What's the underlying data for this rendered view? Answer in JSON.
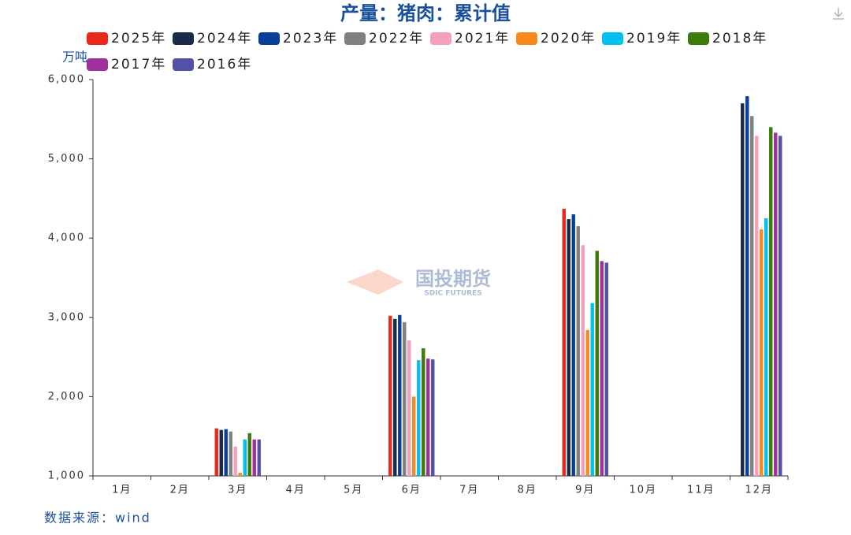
{
  "chart_data": {
    "type": "bar",
    "title": "产量：猪肉：累计值",
    "y_label": "万吨",
    "source": "数据来源：wind",
    "watermark": "国投期货",
    "watermark_sub": "SDIC FUTURES",
    "categories": [
      "1月",
      "2月",
      "3月",
      "4月",
      "5月",
      "6月",
      "7月",
      "8月",
      "9月",
      "10月",
      "11月",
      "12月"
    ],
    "ylim": [
      1000,
      6000
    ],
    "yticks": [
      {
        "value": 1000,
        "label": "1,000"
      },
      {
        "value": 2000,
        "label": "2,000"
      },
      {
        "value": 3000,
        "label": "3,000"
      },
      {
        "value": 4000,
        "label": "4,000"
      },
      {
        "value": 5000,
        "label": "5,000"
      },
      {
        "value": 6000,
        "label": "6,000"
      }
    ],
    "series": [
      {
        "name": "2025年",
        "color": "#e8291c",
        "values": [
          null,
          null,
          1600,
          null,
          null,
          3020,
          null,
          null,
          4370,
          null,
          null,
          null
        ]
      },
      {
        "name": "2024年",
        "color": "#1b2a4a",
        "values": [
          null,
          null,
          1580,
          null,
          null,
          2980,
          null,
          null,
          4240,
          null,
          null,
          5700
        ]
      },
      {
        "name": "2023年",
        "color": "#0a3f99",
        "values": [
          null,
          null,
          1590,
          null,
          null,
          3030,
          null,
          null,
          4300,
          null,
          null,
          5790
        ]
      },
      {
        "name": "2022年",
        "color": "#808080",
        "values": [
          null,
          null,
          1560,
          null,
          null,
          2940,
          null,
          null,
          4150,
          null,
          null,
          5540
        ]
      },
      {
        "name": "2021年",
        "color": "#f4a0b8",
        "values": [
          null,
          null,
          1370,
          null,
          null,
          2710,
          null,
          null,
          3910,
          null,
          null,
          5290
        ]
      },
      {
        "name": "2020年",
        "color": "#f7891e",
        "values": [
          null,
          null,
          1040,
          null,
          null,
          2000,
          null,
          null,
          2840,
          null,
          null,
          4110
        ]
      },
      {
        "name": "2019年",
        "color": "#00c0ef",
        "values": [
          null,
          null,
          1460,
          null,
          null,
          2460,
          null,
          null,
          3180,
          null,
          null,
          4250
        ]
      },
      {
        "name": "2018年",
        "color": "#3d7a0a",
        "values": [
          null,
          null,
          1540,
          null,
          null,
          2610,
          null,
          null,
          3840,
          null,
          null,
          5400
        ]
      },
      {
        "name": "2017年",
        "color": "#a0309d",
        "values": [
          null,
          null,
          1460,
          null,
          null,
          2480,
          null,
          null,
          3710,
          null,
          null,
          5330
        ]
      },
      {
        "name": "2016年",
        "color": "#5350a8",
        "values": [
          null,
          null,
          1460,
          null,
          null,
          2470,
          null,
          null,
          3690,
          null,
          null,
          5290
        ]
      }
    ]
  }
}
